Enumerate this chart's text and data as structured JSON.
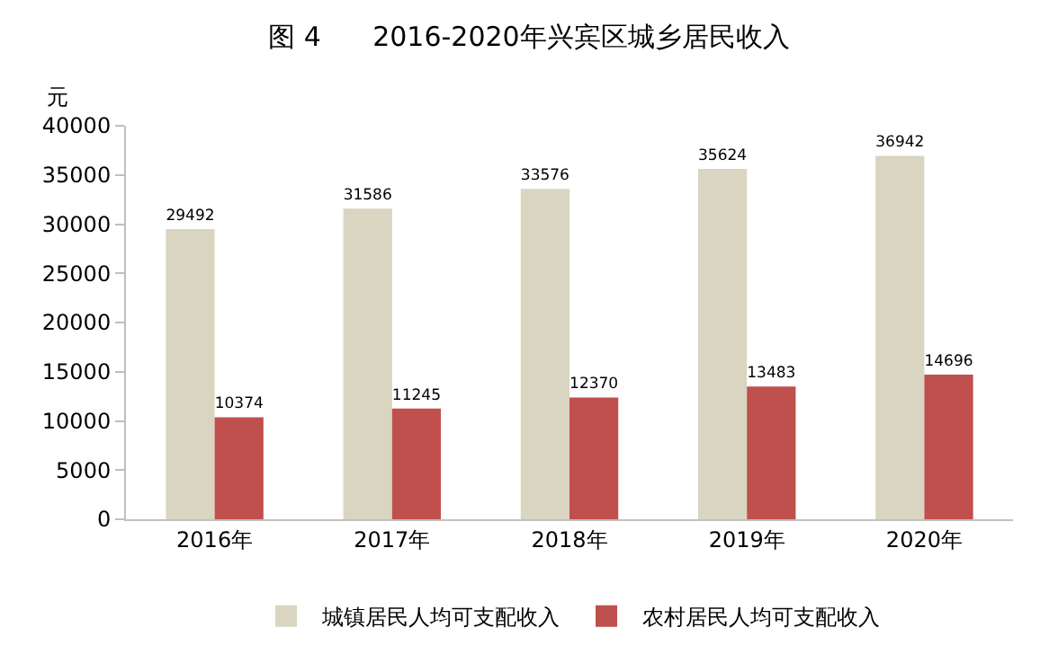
{
  "chart_data": {
    "type": "bar",
    "title": "图 4      2016-2020年兴宾区城乡居民收入",
    "ylabel": "元",
    "categories": [
      "2016年",
      "2017年",
      "2018年",
      "2019年",
      "2020年"
    ],
    "series": [
      {
        "name": "城镇居民人均可支配收入",
        "color": "#d9d5c1",
        "values": [
          29492,
          31586,
          33576,
          35624,
          36942
        ]
      },
      {
        "name": "农村居民人均可支配收入",
        "color": "#c0504d",
        "values": [
          10374,
          11245,
          12370,
          13483,
          14696
        ]
      }
    ],
    "ylim": [
      0,
      40000
    ],
    "yticks": [
      0,
      5000,
      10000,
      15000,
      20000,
      25000,
      30000,
      35000,
      40000
    ],
    "data_labels": true,
    "legend": "bottom"
  }
}
